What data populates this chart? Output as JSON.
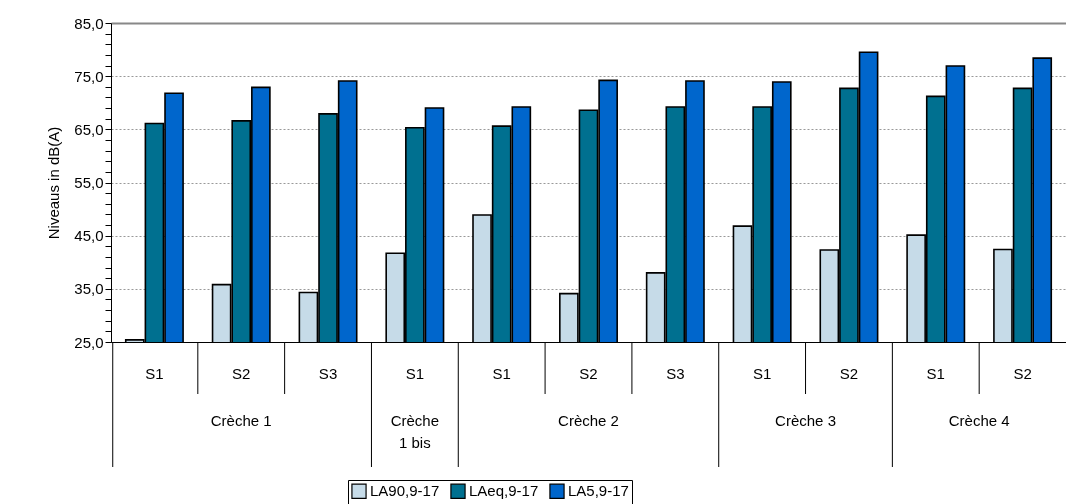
{
  "chart_data": {
    "type": "bar",
    "ylabel": "Niveaus in dB(A)",
    "categories": [
      "S1",
      "S2",
      "S3",
      "S1",
      "S1",
      "S2",
      "S3",
      "S1",
      "S2",
      "S1",
      "S2"
    ],
    "annotations": [
      "Crèche 1",
      "Crèche 1 bis",
      "Crèche 2",
      "Crèche 3",
      "Crèche 4"
    ],
    "series": [
      {
        "name": "LA90,9-17",
        "color": "#c6dbe8",
        "values": [
          25.4,
          35.8,
          34.3,
          41.7,
          48.9,
          34.1,
          38.0,
          46.8,
          42.3,
          45.1,
          42.4
        ]
      },
      {
        "name": "LAeq,9-17",
        "color": "#007090",
        "values": [
          66.1,
          66.6,
          67.9,
          65.3,
          65.6,
          68.6,
          69.2,
          69.2,
          72.7,
          71.2,
          72.7
        ]
      },
      {
        "name": "LA5,9-17",
        "color": "#0066cc",
        "values": [
          71.8,
          72.9,
          74.1,
          69.0,
          69.2,
          74.2,
          74.1,
          73.9,
          79.5,
          76.9,
          78.4
        ]
      }
    ],
    "ylim": [
      25,
      85
    ],
    "yticks": [
      {
        "value": 25,
        "label": "25,0"
      },
      {
        "value": 27,
        "label": null
      },
      {
        "value": 29,
        "label": null
      },
      {
        "value": 31,
        "label": null
      },
      {
        "value": 33,
        "label": null
      },
      {
        "value": 35,
        "label": "35,0"
      },
      {
        "value": 37,
        "label": null
      },
      {
        "value": 39,
        "label": null
      },
      {
        "value": 41,
        "label": null
      },
      {
        "value": 43,
        "label": null
      },
      {
        "value": 45,
        "label": "45,0"
      },
      {
        "value": 47,
        "label": null
      },
      {
        "value": 49,
        "label": null
      },
      {
        "value": 51,
        "label": null
      },
      {
        "value": 53,
        "label": null
      },
      {
        "value": 55,
        "label": "55,0"
      },
      {
        "value": 57,
        "label": null
      },
      {
        "value": 59,
        "label": null
      },
      {
        "value": 61,
        "label": null
      },
      {
        "value": 63,
        "label": null
      },
      {
        "value": 65,
        "label": "65,0"
      },
      {
        "value": 67,
        "label": null
      },
      {
        "value": 69,
        "label": null
      },
      {
        "value": 71,
        "label": null
      },
      {
        "value": 73,
        "label": null
      },
      {
        "value": 75,
        "label": "75,0"
      },
      {
        "value": 77,
        "label": null
      },
      {
        "value": 79,
        "label": null
      },
      {
        "value": 81,
        "label": null
      },
      {
        "value": 83,
        "label": null
      },
      {
        "value": 85,
        "label": "85,0"
      }
    ],
    "grid": "y",
    "legend": "bottom"
  }
}
